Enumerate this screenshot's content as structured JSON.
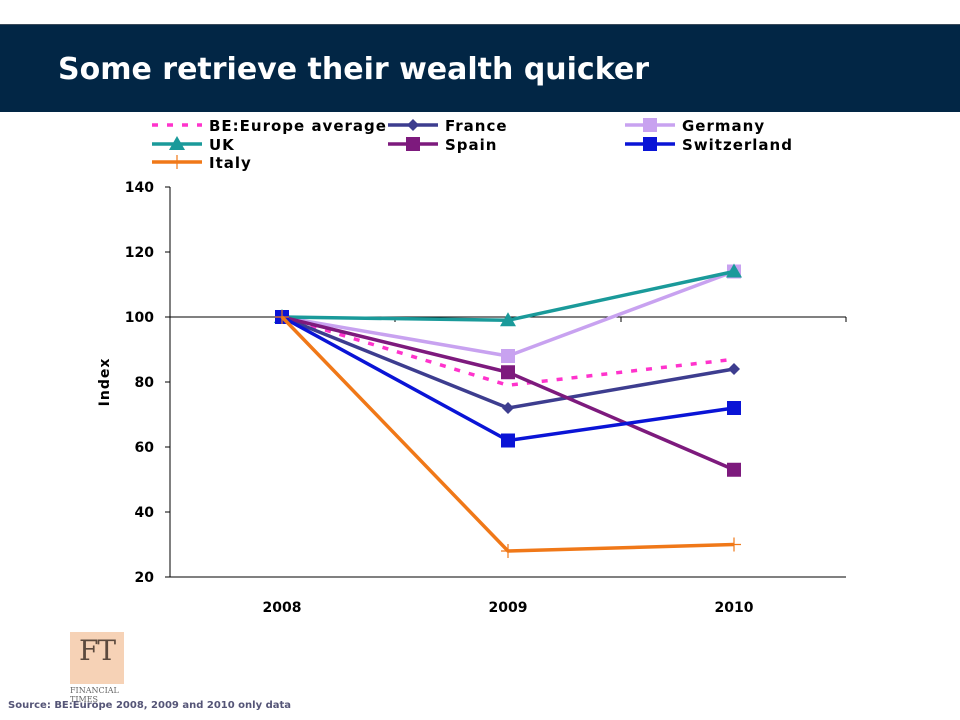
{
  "title": "Some retrieve their wealth quicker",
  "source": "Source: BE:Europe 2008, 2009 and 2010 only data",
  "logo": {
    "letters": "FT",
    "name": "FINANCIAL TIMES"
  },
  "chart_data": {
    "type": "line",
    "title": "",
    "xlabel": "",
    "ylabel": "Index",
    "categories": [
      "2008",
      "2009",
      "2010"
    ],
    "ylim": [
      20,
      140
    ],
    "yticks": [
      20,
      40,
      60,
      80,
      100,
      120,
      140
    ],
    "grid": false,
    "legend_position": "top",
    "series": [
      {
        "name": "BE:Europe average",
        "values": [
          100,
          79,
          87
        ],
        "color": "#ff33cc",
        "dash": true,
        "marker": "none"
      },
      {
        "name": "France",
        "values": [
          100,
          72,
          84
        ],
        "color": "#3d3d8f",
        "dash": false,
        "marker": "diamond"
      },
      {
        "name": "Germany",
        "values": [
          100,
          88,
          114
        ],
        "color": "#c8a2f0",
        "dash": false,
        "marker": "square"
      },
      {
        "name": "UK",
        "values": [
          100,
          99,
          114
        ],
        "color": "#1a9a9a",
        "dash": false,
        "marker": "triangle"
      },
      {
        "name": "Spain",
        "values": [
          100,
          83,
          53
        ],
        "color": "#7d1a7d",
        "dash": false,
        "marker": "square"
      },
      {
        "name": "Switzerland",
        "values": [
          100,
          62,
          72
        ],
        "color": "#0a14d6",
        "dash": false,
        "marker": "square"
      },
      {
        "name": "Italy",
        "values": [
          100,
          28,
          30
        ],
        "color": "#f07818",
        "dash": false,
        "marker": "plus"
      }
    ]
  }
}
